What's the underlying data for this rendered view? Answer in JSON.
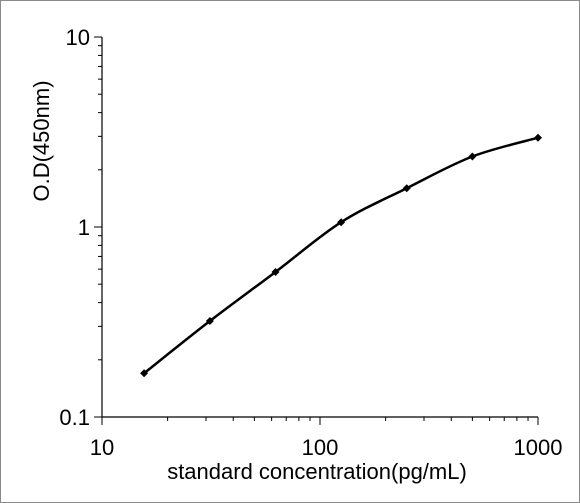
{
  "chart_data": {
    "type": "line",
    "title": "",
    "xlabel": "standard concentration(pg/mL)",
    "ylabel": "O.D(450nm)",
    "x_scale": "log",
    "y_scale": "log",
    "xlim": [
      10,
      1000
    ],
    "ylim": [
      0.1,
      10
    ],
    "x_ticks": [
      "10",
      "100",
      "1000"
    ],
    "y_ticks": [
      "0.1",
      "1",
      "10"
    ],
    "grid": false,
    "legend": "none",
    "line_color": "#000000",
    "series": [
      {
        "x": [
          15.6,
          31.25,
          62.5,
          125,
          250,
          500,
          1000
        ],
        "y": [
          0.17,
          0.32,
          0.58,
          1.06,
          1.6,
          2.35,
          2.95
        ]
      }
    ]
  }
}
